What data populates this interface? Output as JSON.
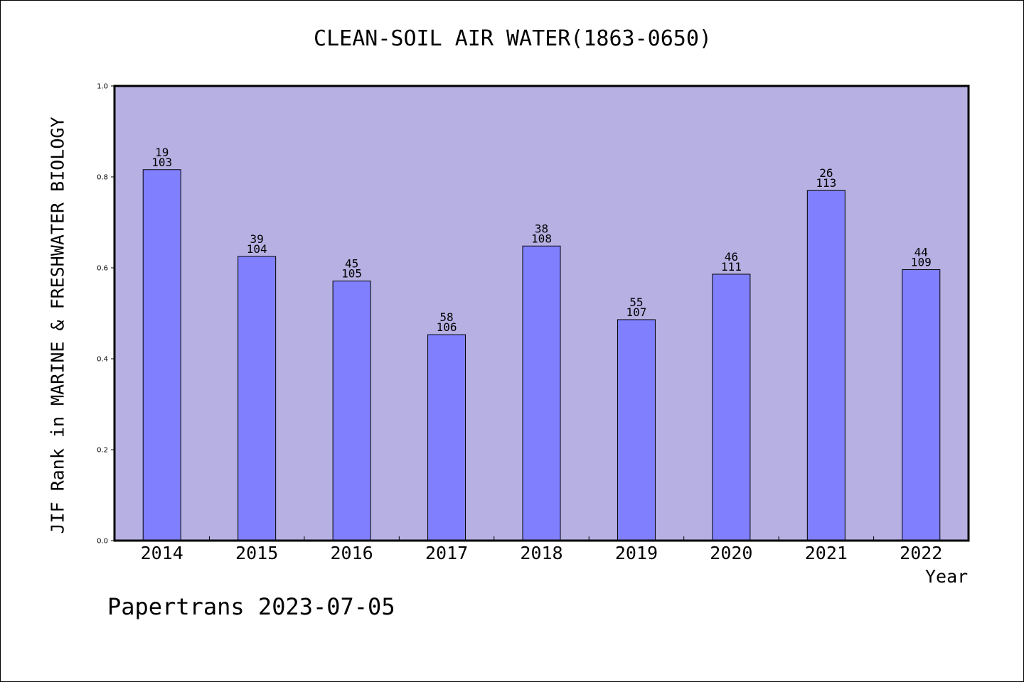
{
  "colors": {
    "plot_background": "#b6b0e3",
    "bar_fill": "#8080ff",
    "bar_stroke": "#000000",
    "axis": "#000000"
  },
  "chart_data": {
    "type": "bar",
    "title": "CLEAN-SOIL AIR WATER(1863-0650)",
    "xlabel": "Year",
    "ylabel": "JIF Rank in MARINE & FRESHWATER BIOLOGY",
    "categories": [
      "2014",
      "2015",
      "2016",
      "2017",
      "2018",
      "2019",
      "2020",
      "2021",
      "2022"
    ],
    "values": [
      0.816,
      0.625,
      0.571,
      0.453,
      0.648,
      0.486,
      0.586,
      0.77,
      0.596
    ],
    "rank": [
      "19",
      "39",
      "45",
      "58",
      "38",
      "55",
      "46",
      "26",
      "44"
    ],
    "total": [
      "103",
      "104",
      "105",
      "106",
      "108",
      "107",
      "111",
      "113",
      "109"
    ],
    "ylim": [
      0.0,
      1.0
    ],
    "yticks": [
      "0.0",
      "0.2",
      "0.4",
      "0.6",
      "0.8",
      "1.0"
    ],
    "grid": false,
    "legend": "none"
  },
  "footer": {
    "stamp": "Papertrans 2023-07-05"
  }
}
